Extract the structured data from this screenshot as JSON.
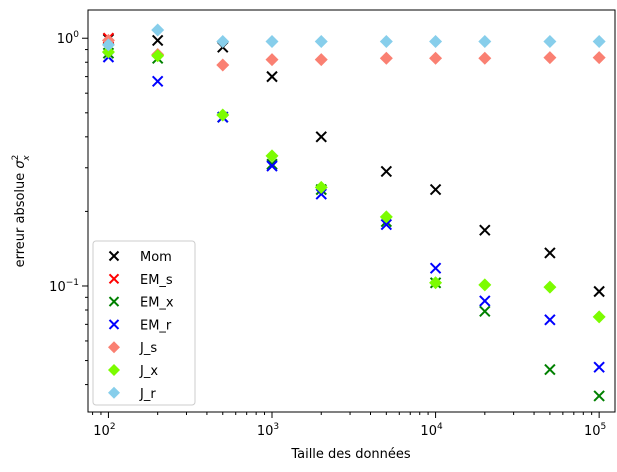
{
  "chart_data": {
    "type": "scatter",
    "x_scale": "log",
    "y_scale": "log",
    "xlim": [
      75,
      125000
    ],
    "ylim": [
      0.031,
      1.3
    ],
    "xlabel": "Taille des données",
    "ylabel_text": "erreur absolue ",
    "ylabel_math": "σ",
    "ylabel_sup": "2",
    "ylabel_sub": "x",
    "x_ticks": [
      {
        "value": 100,
        "base": "10",
        "exp": "2"
      },
      {
        "value": 1000,
        "base": "10",
        "exp": "3"
      },
      {
        "value": 10000,
        "base": "10",
        "exp": "4"
      },
      {
        "value": 100000,
        "base": "10",
        "exp": "5"
      }
    ],
    "y_ticks": [
      {
        "value": 1,
        "base": "10",
        "exp": "0"
      },
      {
        "value": 0.1,
        "base": "10",
        "exp": "−1"
      }
    ],
    "legend_position": "lower-left",
    "x": [
      100,
      200,
      500,
      1000,
      2000,
      5000,
      10000,
      20000,
      50000,
      100000
    ],
    "series": [
      {
        "name": "Mom",
        "marker": "x",
        "color": "#000000",
        "values": [
          0.99,
          0.98,
          0.92,
          0.7,
          0.4,
          0.29,
          0.245,
          0.168,
          0.136,
          0.095
        ]
      },
      {
        "name": "EM_s",
        "marker": "x",
        "color": "#ff0000",
        "values": [
          1.0,
          null,
          null,
          null,
          null,
          null,
          null,
          null,
          null,
          null
        ]
      },
      {
        "name": "EM_x",
        "marker": "x",
        "color": "#008000",
        "values": [
          0.87,
          0.83,
          0.48,
          0.31,
          0.245,
          0.182,
          0.103,
          0.079,
          0.046,
          0.036
        ]
      },
      {
        "name": "EM_r",
        "marker": "x",
        "color": "#0000ff",
        "values": [
          0.84,
          0.67,
          0.48,
          0.305,
          0.235,
          0.177,
          0.118,
          0.087,
          0.073,
          0.047
        ]
      },
      {
        "name": "J_s",
        "marker": "D",
        "color": "#fa8072",
        "values": [
          0.98,
          0.86,
          0.78,
          0.82,
          0.82,
          0.83,
          0.83,
          0.83,
          0.835,
          0.835
        ]
      },
      {
        "name": "J_x",
        "marker": "D",
        "color": "#7cfc00",
        "values": [
          0.88,
          0.85,
          0.49,
          0.335,
          0.25,
          0.19,
          0.103,
          0.101,
          0.099,
          0.075
        ]
      },
      {
        "name": "J_r",
        "marker": "D",
        "color": "#87ceeb",
        "values": [
          0.94,
          1.08,
          0.97,
          0.97,
          0.97,
          0.97,
          0.97,
          0.97,
          0.97,
          0.97
        ]
      }
    ]
  }
}
